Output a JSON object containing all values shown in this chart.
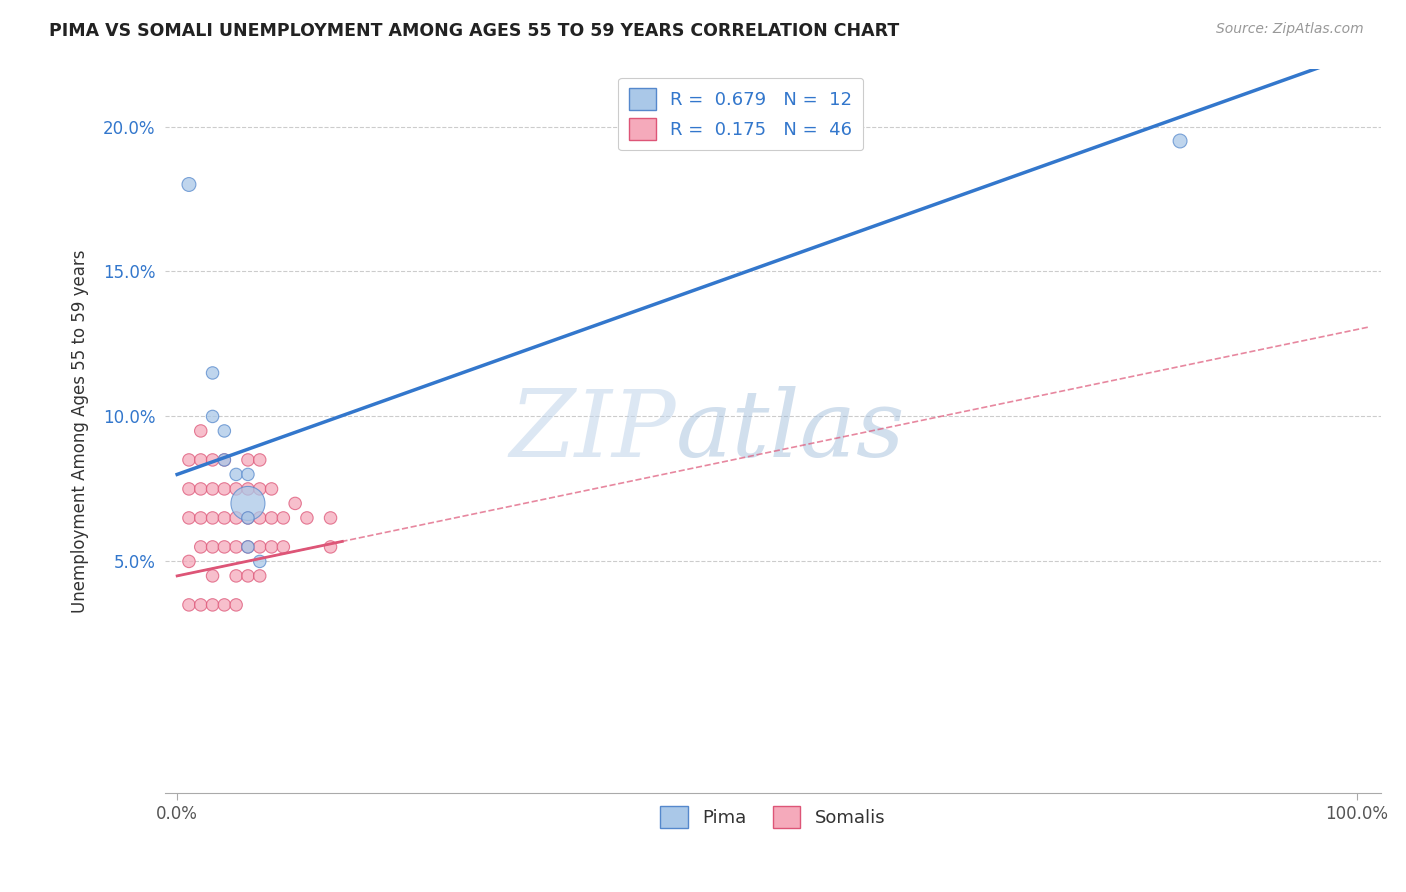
{
  "title": "PIMA VS SOMALI UNEMPLOYMENT AMONG AGES 55 TO 59 YEARS CORRELATION CHART",
  "source": "Source: ZipAtlas.com",
  "xlabel": "",
  "ylabel": "Unemployment Among Ages 55 to 59 years",
  "xlim": [
    -1,
    102
  ],
  "ylim": [
    -3,
    22
  ],
  "yticks": [
    5,
    10,
    15,
    20
  ],
  "yticklabels": [
    "5.0%",
    "10.0%",
    "15.0%",
    "20.0%"
  ],
  "pima_color": "#aac8e8",
  "somali_color": "#f5aabb",
  "pima_edge_color": "#5588cc",
  "somali_edge_color": "#dd5577",
  "regression_pima_color": "#3377cc",
  "regression_somali_color": "#dd5577",
  "pima_R": 0.679,
  "pima_N": 12,
  "somali_R": 0.175,
  "somali_N": 46,
  "pima_x": [
    1,
    3,
    3,
    4,
    4,
    5,
    6,
    6,
    6,
    6,
    7,
    85
  ],
  "pima_y": [
    18,
    11.5,
    10,
    9.5,
    8.5,
    8,
    8,
    7,
    6.5,
    5.5,
    5,
    19.5
  ],
  "somali_x": [
    1,
    1,
    1,
    1,
    1,
    2,
    2,
    2,
    2,
    2,
    2,
    3,
    3,
    3,
    3,
    3,
    3,
    4,
    4,
    4,
    4,
    4,
    5,
    5,
    5,
    5,
    5,
    6,
    6,
    6,
    6,
    6,
    7,
    7,
    7,
    7,
    7,
    8,
    8,
    8,
    9,
    9,
    10,
    11,
    13,
    13
  ],
  "somali_y": [
    8.5,
    7.5,
    6.5,
    5,
    3.5,
    9.5,
    8.5,
    7.5,
    6.5,
    5.5,
    3.5,
    8.5,
    7.5,
    6.5,
    5.5,
    4.5,
    3.5,
    8.5,
    7.5,
    6.5,
    5.5,
    3.5,
    7.5,
    6.5,
    5.5,
    4.5,
    3.5,
    8.5,
    7.5,
    6.5,
    5.5,
    4.5,
    8.5,
    7.5,
    6.5,
    5.5,
    4.5,
    7.5,
    6.5,
    5.5,
    6.5,
    5.5,
    7,
    6.5,
    6.5,
    5.5
  ],
  "pima_sizes": [
    100,
    80,
    80,
    80,
    80,
    80,
    80,
    600,
    80,
    80,
    80,
    100
  ],
  "somali_sizes": [
    80,
    80,
    80,
    80,
    80,
    80,
    80,
    80,
    80,
    80,
    80,
    80,
    80,
    80,
    80,
    80,
    80,
    80,
    80,
    80,
    80,
    80,
    80,
    80,
    80,
    80,
    80,
    80,
    80,
    80,
    80,
    80,
    80,
    80,
    80,
    80,
    80,
    80,
    80,
    80,
    80,
    80,
    80,
    80,
    80,
    80
  ],
  "watermark_zip": "ZIP",
  "watermark_atlas": "atlas",
  "background_color": "#ffffff",
  "grid_color": "#cccccc",
  "regression_pima_intercept": 8.0,
  "regression_pima_slope": 0.145,
  "regression_somali_intercept": 4.5,
  "regression_somali_slope": 0.085,
  "regression_somali_solid_xmax": 14
}
